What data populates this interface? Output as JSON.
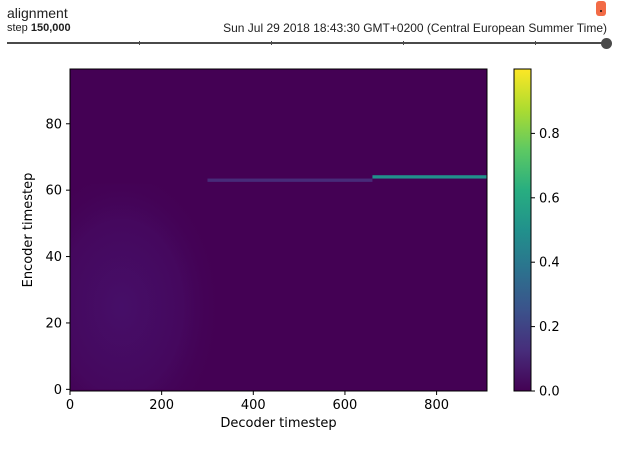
{
  "header": {
    "title": "alignment",
    "step_label": "step",
    "step_value": "150,000",
    "timestamp": "Sun Jul 29 2018 18:43:30 GMT+0200 (Central European Summer Time)"
  },
  "colors": {
    "slider": "#4a4a4a",
    "badge": "#f26b46"
  },
  "chart_data": {
    "type": "heatmap",
    "title": "",
    "xlabel": "Decoder timestep",
    "ylabel": "Encoder timestep",
    "xlim": [
      0,
      910
    ],
    "ylim": [
      -0.5,
      96.5
    ],
    "xticks": [
      0,
      200,
      400,
      600,
      800
    ],
    "yticks": [
      0,
      20,
      40,
      60,
      80
    ],
    "colormap": "viridis",
    "colorbar": {
      "min": 0.0,
      "max": 1.0,
      "ticks": [
        0.0,
        0.2,
        0.4,
        0.6,
        0.8
      ]
    },
    "rows": 97,
    "cols": 910,
    "features": [
      {
        "label": "main alignment streak",
        "encoder_timestep": 64,
        "decoder_from": 660,
        "decoder_to": 910,
        "value": 0.5
      },
      {
        "label": "faint alignment band",
        "encoder_timestep": 63,
        "decoder_from": 300,
        "decoder_to": 660,
        "value": 0.12
      },
      {
        "label": "diffuse attention region",
        "encoder_from": 0,
        "encoder_to": 62,
        "decoder_from": 0,
        "decoder_to": 320,
        "value": 0.04
      }
    ]
  }
}
